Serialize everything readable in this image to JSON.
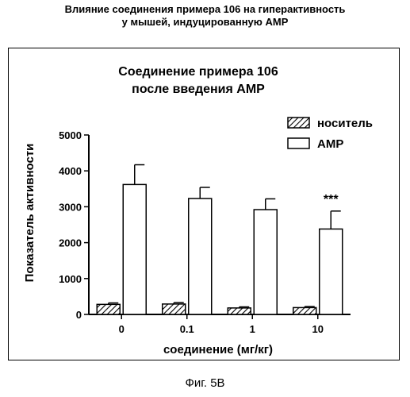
{
  "figure": {
    "header_line1": "Влияние соединения примера 106 на гиперактивность",
    "header_line2": "у мышей, индуцированную АМР",
    "caption": "Фиг. 5В"
  },
  "chart_data": {
    "type": "bar",
    "title": [
      "Соединение примера 106",
      "после введения АМР"
    ],
    "xlabel": "соединение (мг/кг)",
    "ylabel": "Показатель активности",
    "categories": [
      "0",
      "0.1",
      "1",
      "10"
    ],
    "ylim": [
      0,
      5000
    ],
    "yticks": [
      0,
      1000,
      2000,
      3000,
      4000,
      5000
    ],
    "series": [
      {
        "name": "носитель",
        "fill": "hatched",
        "values": [
          280,
          290,
          180,
          190
        ],
        "errors": [
          40,
          40,
          30,
          30
        ]
      },
      {
        "name": "АМР",
        "fill": "white",
        "values": [
          3620,
          3230,
          2920,
          2380
        ],
        "errors": [
          550,
          310,
          300,
          500
        ]
      }
    ],
    "annotations": [
      {
        "category_index": 3,
        "series_index": 1,
        "text": "***"
      }
    ],
    "legend_position": "top-right"
  }
}
